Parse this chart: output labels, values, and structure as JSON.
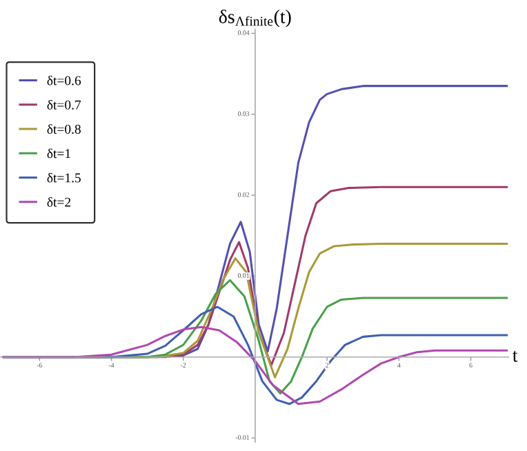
{
  "chart_data": {
    "type": "line",
    "ylabel": "δs$_{Λfinite}$(t)",
    "xlabel": "t",
    "xlim": [
      -7.1,
      7.05
    ],
    "ylim": [
      -0.0105,
      0.0405
    ],
    "xticks": [
      -6,
      -4,
      -2,
      2,
      4,
      6
    ],
    "yticks": [
      {
        "value": -0.01,
        "label": "-0.01"
      },
      0.01,
      0.02,
      0.03,
      0.04
    ],
    "legend": "top left",
    "grid": false,
    "marker": "none",
    "line_style": "solid",
    "series": [
      {
        "name": "δt=0.6",
        "color": "#5450b0",
        "x": [
          -7,
          -3,
          -2,
          -1.6,
          -1.3,
          -1.0,
          -0.7,
          -0.4,
          -0.15,
          0.1,
          0.35,
          0.6,
          0.9,
          1.2,
          1.5,
          1.8,
          2.0,
          2.4,
          3.0,
          4,
          7
        ],
        "values": [
          0,
          0,
          0.0002,
          0.001,
          0.004,
          0.009,
          0.014,
          0.0167,
          0.013,
          0.004,
          0.0007,
          0.006,
          0.015,
          0.024,
          0.029,
          0.0318,
          0.0325,
          0.0331,
          0.0335,
          0.0335,
          0.0335
        ]
      },
      {
        "name": "δt=0.7",
        "color": "#a03a6a",
        "x": [
          -7,
          -2.5,
          -2,
          -1.6,
          -1.3,
          -1,
          -0.7,
          -0.45,
          -0.2,
          0.1,
          0.45,
          0.8,
          1.1,
          1.4,
          1.7,
          2.1,
          2.6,
          3.5,
          7
        ],
        "values": [
          0,
          0,
          0.0003,
          0.0015,
          0.004,
          0.008,
          0.012,
          0.0142,
          0.011,
          0.003,
          -0.001,
          0.003,
          0.009,
          0.015,
          0.019,
          0.0205,
          0.0209,
          0.021,
          0.021
        ]
      },
      {
        "name": "δt=0.8",
        "color": "#a89a3a",
        "x": [
          -7,
          -2.7,
          -2,
          -1.6,
          -1.2,
          -0.9,
          -0.55,
          -0.25,
          0.1,
          0.55,
          0.9,
          1.2,
          1.5,
          1.8,
          2.2,
          2.7,
          3.5,
          7
        ],
        "values": [
          0,
          0,
          0.0005,
          0.002,
          0.006,
          0.0095,
          0.0122,
          0.0105,
          0.003,
          -0.0025,
          0.001,
          0.006,
          0.0105,
          0.0128,
          0.0137,
          0.0139,
          0.014,
          0.014
        ]
      },
      {
        "name": "δt=1",
        "color": "#4aa04a",
        "x": [
          -7,
          -3,
          -2.5,
          -2,
          -1.5,
          -1.1,
          -0.7,
          -0.3,
          0.1,
          0.4,
          0.7,
          1.0,
          1.3,
          1.6,
          2.0,
          2.4,
          3,
          4,
          7
        ],
        "values": [
          0,
          0,
          0.0003,
          0.0015,
          0.0045,
          0.0078,
          0.0095,
          0.0075,
          0.002,
          -0.003,
          -0.0045,
          -0.003,
          0.0,
          0.0035,
          0.0062,
          0.0071,
          0.0073,
          0.0073,
          0.0073
        ]
      },
      {
        "name": "δt=1.5",
        "color": "#4060b0",
        "x": [
          -7,
          -4,
          -3,
          -2.5,
          -2,
          -1.5,
          -1.05,
          -0.6,
          -0.2,
          0.2,
          0.6,
          0.95,
          1.3,
          1.7,
          2.1,
          2.5,
          3,
          3.5,
          4,
          7
        ],
        "values": [
          0,
          0,
          0.0004,
          0.0014,
          0.0033,
          0.0053,
          0.0062,
          0.005,
          0.0015,
          -0.003,
          -0.0053,
          -0.0058,
          -0.005,
          -0.003,
          -0.0005,
          0.0015,
          0.0025,
          0.0027,
          0.0027,
          0.0027
        ]
      },
      {
        "name": "δt=2",
        "color": "#b048b0",
        "x": [
          -7,
          -5,
          -4,
          -3,
          -2.5,
          -2,
          -1.5,
          -1,
          -0.5,
          0,
          0.5,
          1.2,
          1.8,
          2.4,
          3,
          3.5,
          4,
          4.5,
          5,
          7
        ],
        "values": [
          0,
          0,
          0.0003,
          0.0015,
          0.0026,
          0.0034,
          0.0037,
          0.0033,
          0.0018,
          -0.0005,
          -0.0035,
          -0.0058,
          -0.0055,
          -0.004,
          -0.0022,
          -0.0008,
          0.0,
          0.0006,
          0.0008,
          0.0008
        ]
      }
    ]
  }
}
